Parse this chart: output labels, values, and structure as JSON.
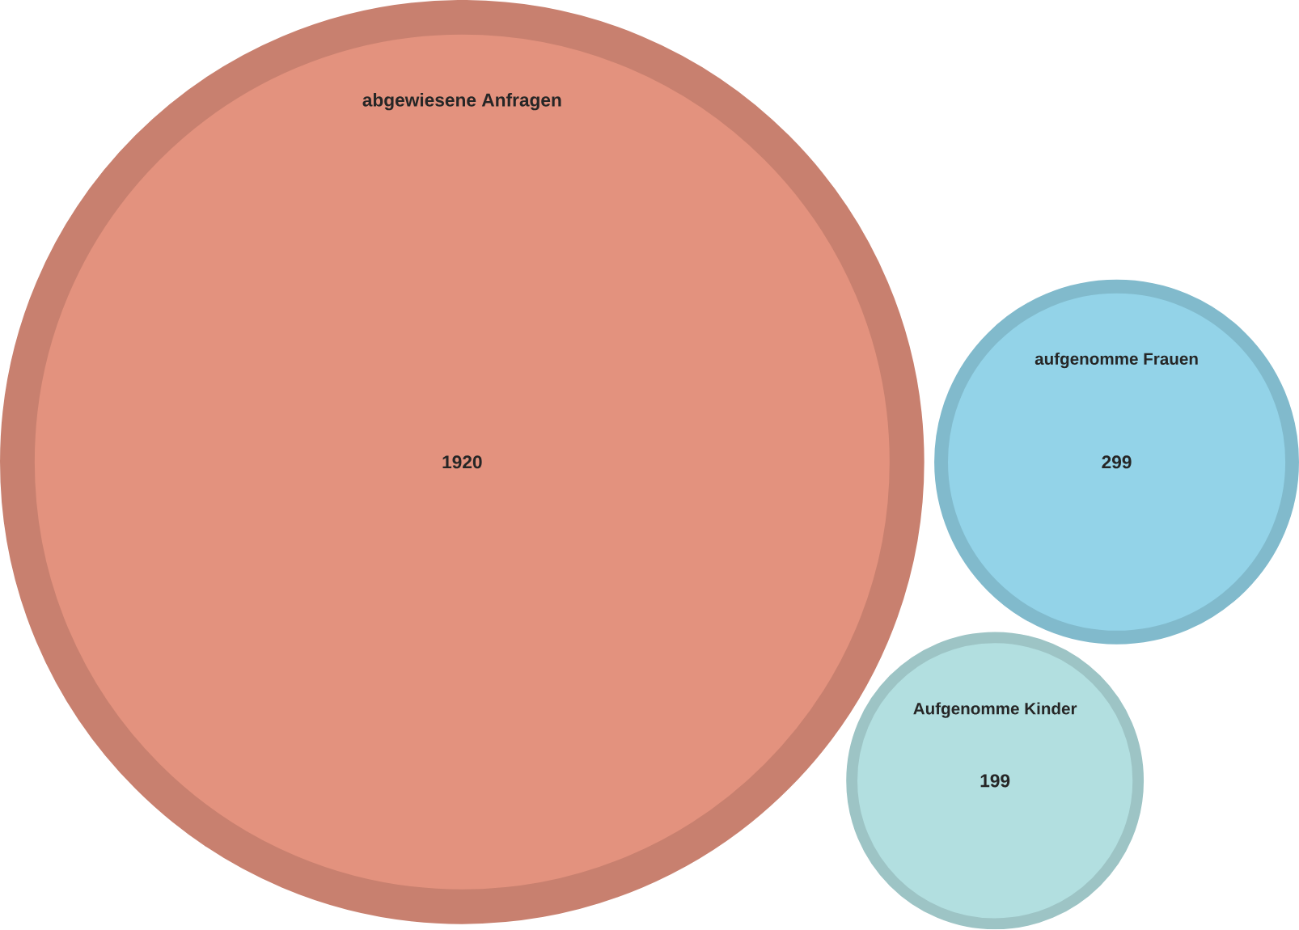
{
  "chart_data": {
    "type": "other",
    "categories": [
      "abgewiesene Anfragen",
      "aufgenomme Frauen",
      "Aufgenomme Kinder"
    ],
    "values": [
      1920,
      299,
      199
    ],
    "colors": [
      "#e3927e",
      "#93d3e8",
      "#b2dfe0"
    ],
    "data_labels": true
  }
}
